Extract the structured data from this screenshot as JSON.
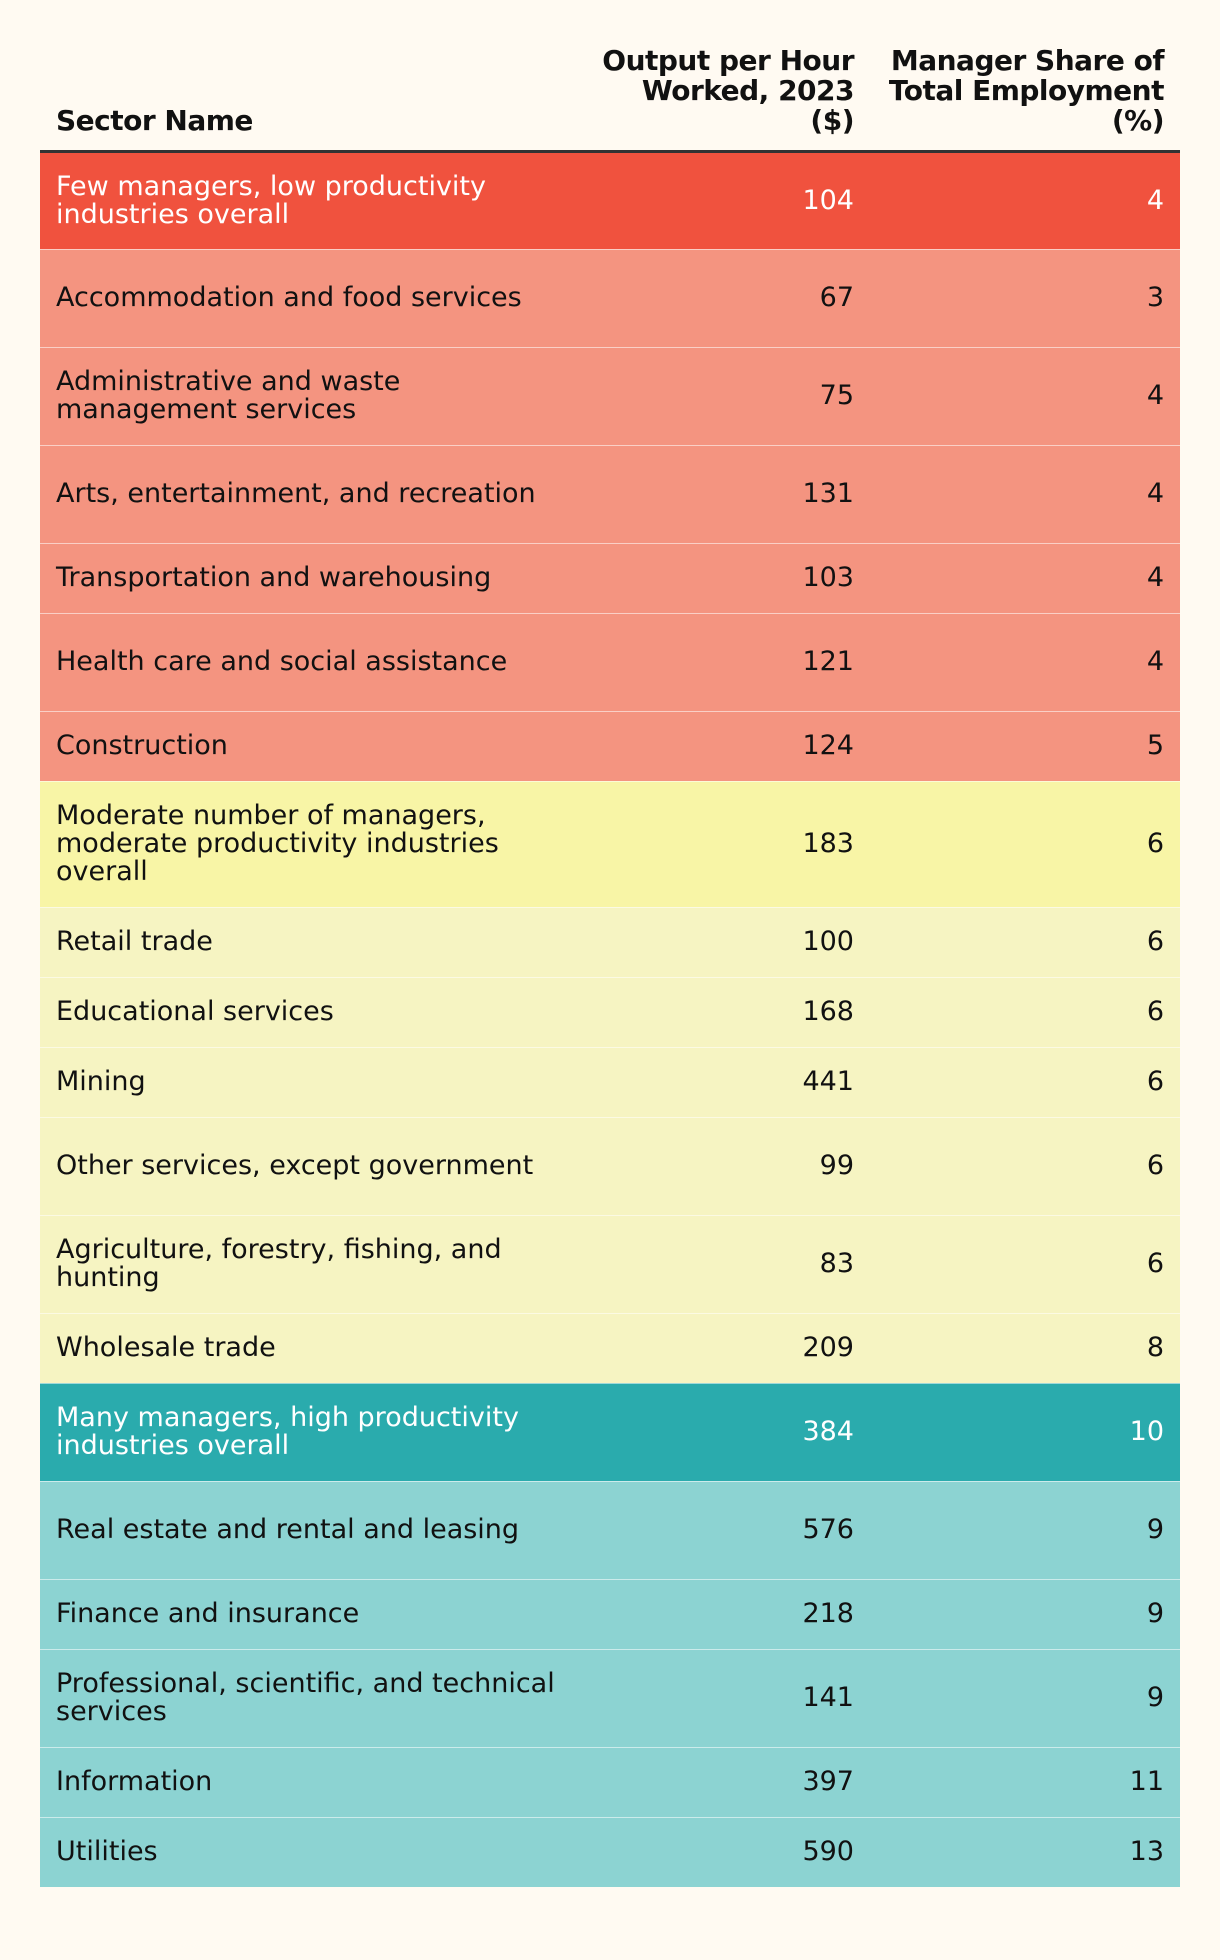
{
  "chart_data": {
    "type": "table",
    "columns": [
      "Sector Name",
      "Output per Hour Worked, 2023 ($)",
      "Manager Share of Total Employment (%)"
    ],
    "rows": [
      {
        "sector": "Few managers, low productivity industries overall",
        "output": 104,
        "share": 4,
        "group": "low",
        "summary": true
      },
      {
        "sector": "Accommodation and food services",
        "output": 67,
        "share": 3,
        "group": "low",
        "summary": false
      },
      {
        "sector": "Administrative and waste management services",
        "output": 75,
        "share": 4,
        "group": "low",
        "summary": false
      },
      {
        "sector": "Arts, entertainment, and recreation",
        "output": 131,
        "share": 4,
        "group": "low",
        "summary": false
      },
      {
        "sector": "Transportation and warehousing",
        "output": 103,
        "share": 4,
        "group": "low",
        "summary": false
      },
      {
        "sector": "Health care and social assistance",
        "output": 121,
        "share": 4,
        "group": "low",
        "summary": false
      },
      {
        "sector": "Construction",
        "output": 124,
        "share": 5,
        "group": "low",
        "summary": false
      },
      {
        "sector": "Moderate number of managers, moderate productivity industries overall",
        "output": 183,
        "share": 6,
        "group": "mid",
        "summary": true
      },
      {
        "sector": "Retail trade",
        "output": 100,
        "share": 6,
        "group": "mid",
        "summary": false
      },
      {
        "sector": "Educational services",
        "output": 168,
        "share": 6,
        "group": "mid",
        "summary": false
      },
      {
        "sector": "Mining",
        "output": 441,
        "share": 6,
        "group": "mid",
        "summary": false
      },
      {
        "sector": "Other services, except government",
        "output": 99,
        "share": 6,
        "group": "mid",
        "summary": false
      },
      {
        "sector": "Agriculture, forestry, fishing, and hunting",
        "output": 83,
        "share": 6,
        "group": "mid",
        "summary": false
      },
      {
        "sector": "Wholesale trade",
        "output": 209,
        "share": 8,
        "group": "mid",
        "summary": false
      },
      {
        "sector": "Many managers, high productivity industries overall",
        "output": 384,
        "share": 10,
        "group": "high",
        "summary": true
      },
      {
        "sector": "Real estate and rental and leasing",
        "output": 576,
        "share": 9,
        "group": "high",
        "summary": false
      },
      {
        "sector": "Finance and insurance",
        "output": 218,
        "share": 9,
        "group": "high",
        "summary": false
      },
      {
        "sector": "Professional, scientific, and technical services",
        "output": 141,
        "share": 9,
        "group": "high",
        "summary": false
      },
      {
        "sector": "Information",
        "output": 397,
        "share": 11,
        "group": "high",
        "summary": false
      },
      {
        "sector": "Utilities",
        "output": 590,
        "share": 13,
        "group": "high",
        "summary": false
      }
    ],
    "colors": {
      "low_summary": "#f0523e",
      "low": "#f49480",
      "mid_summary": "#f8f5a6",
      "mid": "#f6f4c2",
      "high_summary": "#2aabad",
      "high": "#8cd3d2"
    }
  }
}
